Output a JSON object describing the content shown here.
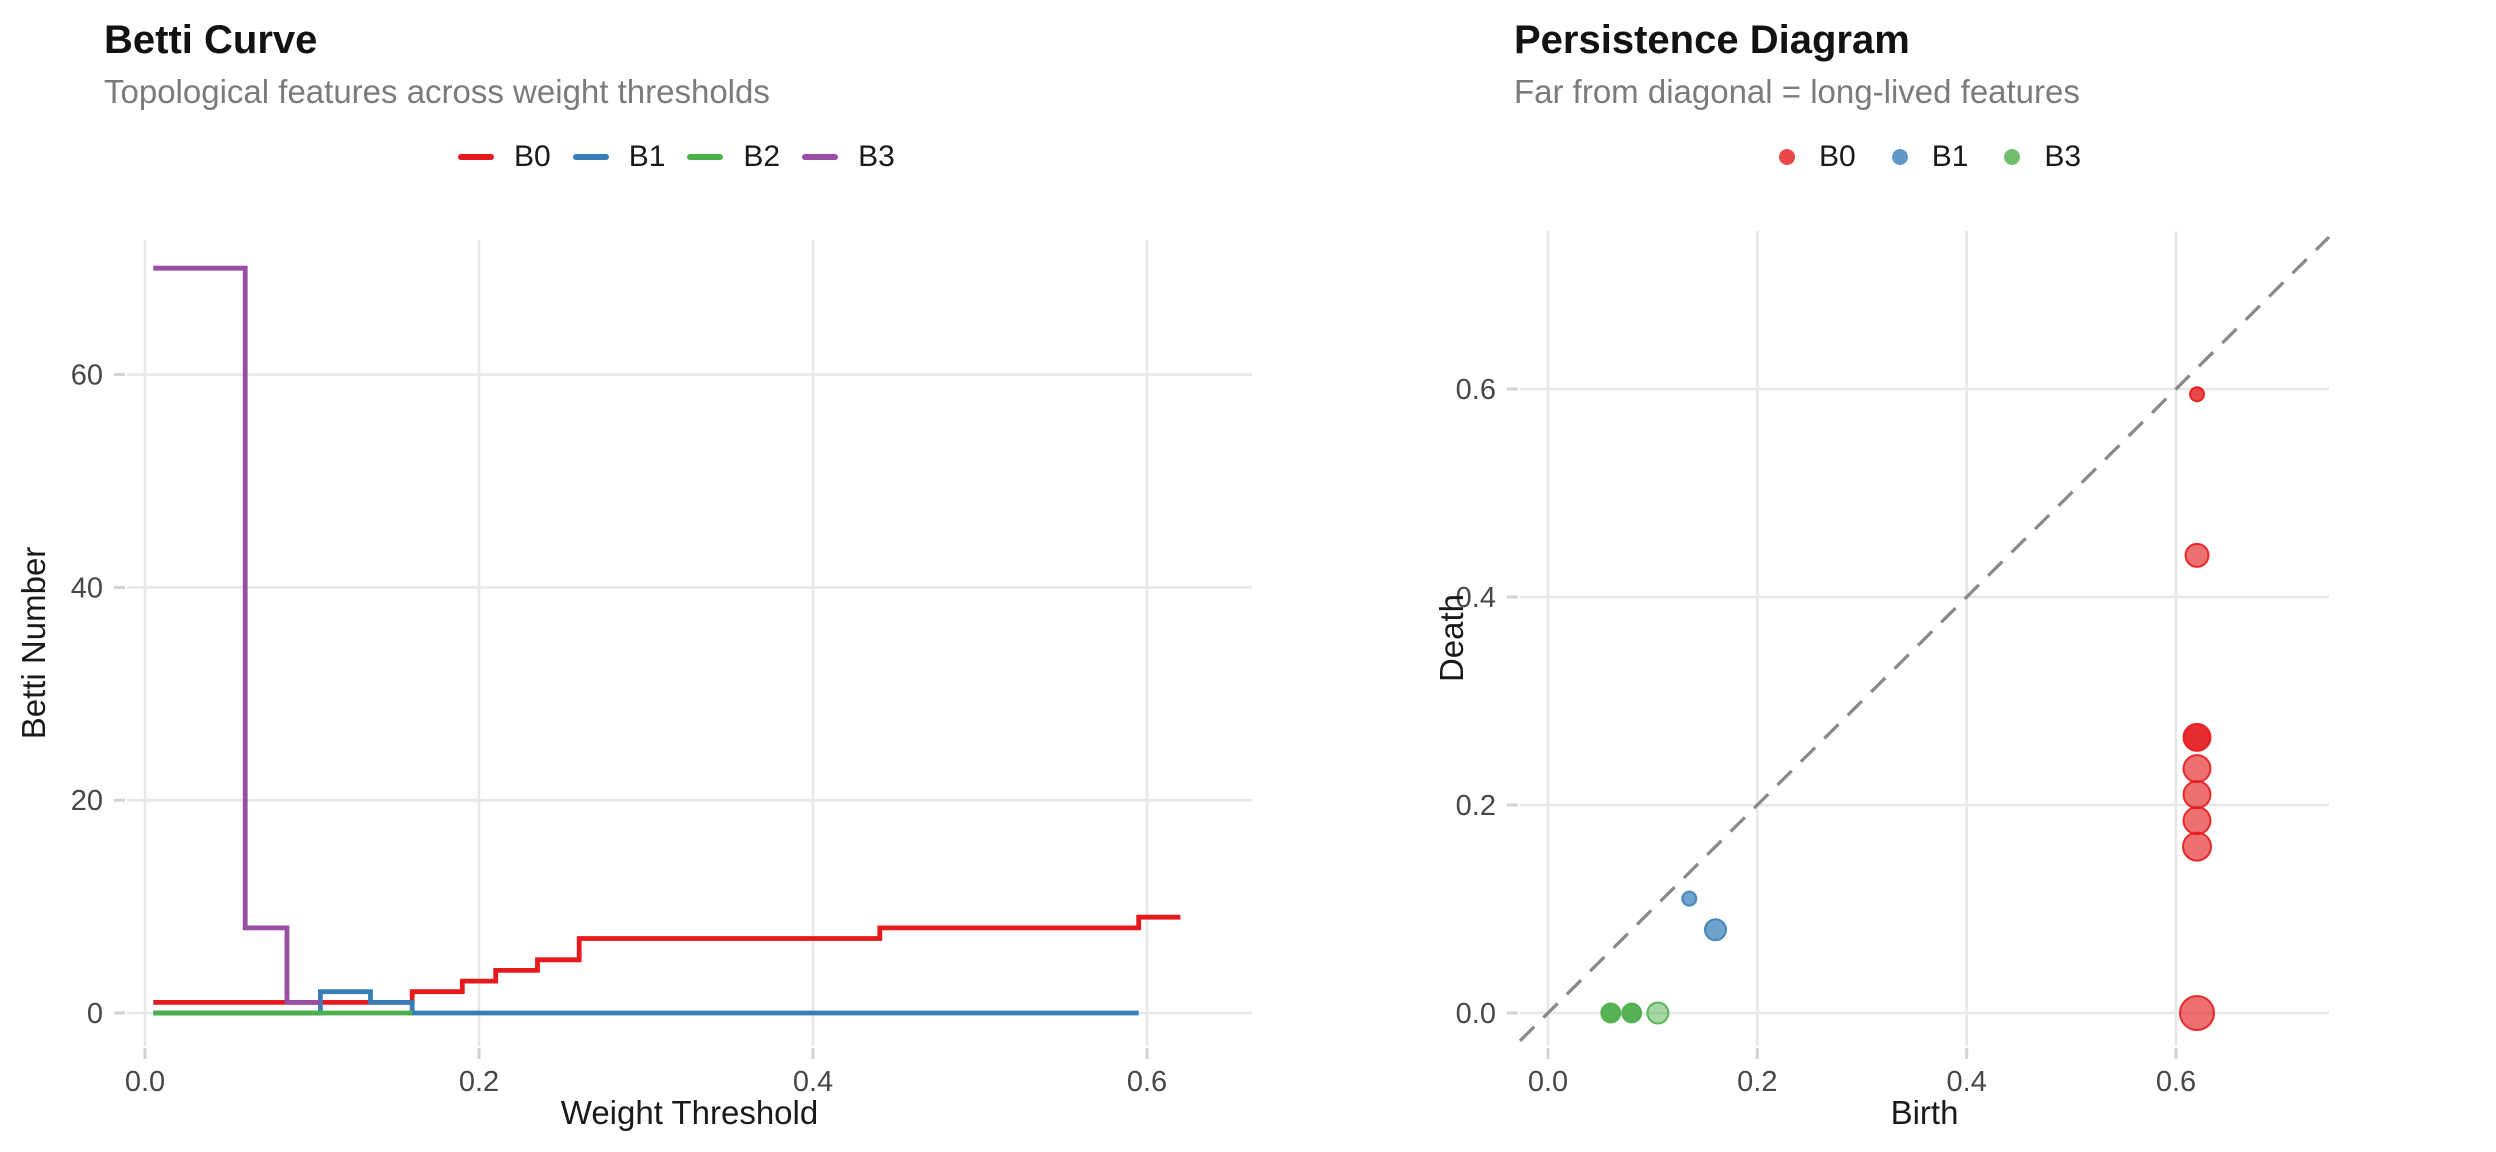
{
  "betti": {
    "title": "Betti Curve",
    "subtitle": "Topological features across weight thresholds",
    "xlabel": "Weight Threshold",
    "ylabel": "Betti Number",
    "legend": [
      {
        "label": "B0",
        "color": "#e41a1c"
      },
      {
        "label": "B1",
        "color": "#377eb8"
      },
      {
        "label": "B2",
        "color": "#4daf4a"
      },
      {
        "label": "B3",
        "color": "#984ea3"
      }
    ]
  },
  "persistence": {
    "title": "Persistence Diagram",
    "subtitle": "Far from diagonal = long-lived features",
    "xlabel": "Birth",
    "ylabel": "Death",
    "legend": [
      {
        "label": "B0",
        "color": "#e41a1c"
      },
      {
        "label": "B1",
        "color": "#377eb8"
      },
      {
        "label": "B3",
        "color": "#4daf4a"
      }
    ]
  },
  "colors": {
    "grid": "#e7e7e7",
    "tick": "#d2d2d2",
    "tick_label": "#474747",
    "axis_title": "#1a1a1a",
    "title": "#121212",
    "subtitle": "#7b7b7b",
    "diagonal": "#8a8a8a",
    "background": "#ffffff"
  },
  "chart_data": [
    {
      "type": "line",
      "step": true,
      "title": "Betti Curve",
      "subtitle": "Topological features across weight thresholds",
      "xlabel": "Weight Threshold",
      "ylabel": "Betti Number",
      "xlim": [
        -0.01,
        0.66
      ],
      "ylim": [
        -3,
        73
      ],
      "xticks": [
        0,
        0.2,
        0.4,
        0.6
      ],
      "xtick_labels": [
        "0.0",
        "0.2",
        "0.4",
        "0.6"
      ],
      "yticks": [
        0,
        20,
        40,
        60
      ],
      "ytick_labels": [
        "0",
        "20",
        "40",
        "60"
      ],
      "grid": "major",
      "legend_position": "top",
      "series": [
        {
          "name": "B0",
          "color": "#e41a1c",
          "points": [
            [
              0.005,
              1
            ],
            [
              0.16,
              2
            ],
            [
              0.19,
              3
            ],
            [
              0.21,
              4
            ],
            [
              0.235,
              5
            ],
            [
              0.26,
              7
            ],
            [
              0.44,
              8
            ],
            [
              0.595,
              9
            ],
            [
              0.62,
              9
            ]
          ]
        },
        {
          "name": "B1",
          "color": "#377eb8",
          "points": [
            [
              0.005,
              0
            ],
            [
              0.105,
              2
            ],
            [
              0.135,
              1
            ],
            [
              0.16,
              0
            ],
            [
              0.595,
              0
            ]
          ]
        },
        {
          "name": "B2",
          "color": "#4daf4a",
          "points": [
            [
              0.005,
              0
            ],
            [
              0.16,
              0
            ]
          ]
        },
        {
          "name": "B3",
          "color": "#984ea3",
          "points": [
            [
              0.005,
              70
            ],
            [
              0.06,
              8
            ],
            [
              0.085,
              1
            ],
            [
              0.105,
              1
            ]
          ]
        }
      ]
    },
    {
      "type": "scatter",
      "title": "Persistence Diagram",
      "subtitle": "Far from diagonal = long-lived features",
      "xlabel": "Birth",
      "ylabel": "Death",
      "xlim": [
        -0.027,
        0.746
      ],
      "ylim": [
        -0.032,
        0.752
      ],
      "xticks": [
        0,
        0.2,
        0.4,
        0.6
      ],
      "xtick_labels": [
        "0.0",
        "0.2",
        "0.4",
        "0.6"
      ],
      "yticks": [
        0,
        0.2,
        0.4,
        0.6
      ],
      "ytick_labels": [
        "0.0",
        "0.2",
        "0.4",
        "0.6"
      ],
      "grid": "major",
      "diagonal": {
        "style": "dashed",
        "equation": "y = x"
      },
      "legend_position": "top",
      "series": [
        {
          "name": "B0",
          "color": "#e41a1c",
          "points": [
            {
              "birth": 0.62,
              "death": 0.595,
              "size": 7,
              "alpha": 0.8
            },
            {
              "birth": 0.62,
              "death": 0.44,
              "size": 11.5,
              "alpha": 0.62
            },
            {
              "birth": 0.62,
              "death": 0.265,
              "size": 13.5,
              "alpha": 0.92
            },
            {
              "birth": 0.62,
              "death": 0.235,
              "size": 13.5,
              "alpha": 0.62
            },
            {
              "birth": 0.62,
              "death": 0.21,
              "size": 13.5,
              "alpha": 0.62
            },
            {
              "birth": 0.62,
              "death": 0.185,
              "size": 13.5,
              "alpha": 0.62
            },
            {
              "birth": 0.62,
              "death": 0.16,
              "size": 14,
              "alpha": 0.62
            },
            {
              "birth": 0.62,
              "death": 0.0,
              "size": 17,
              "alpha": 0.62
            }
          ]
        },
        {
          "name": "B1",
          "color": "#377eb8",
          "points": [
            {
              "birth": 0.135,
              "death": 0.11,
              "size": 7,
              "alpha": 0.72
            },
            {
              "birth": 0.16,
              "death": 0.08,
              "size": 10.5,
              "alpha": 0.72
            }
          ]
        },
        {
          "name": "B3",
          "color": "#4daf4a",
          "points": [
            {
              "birth": 0.06,
              "death": 0.0,
              "size": 9.5,
              "alpha": 0.95
            },
            {
              "birth": 0.08,
              "death": 0.0,
              "size": 9.5,
              "alpha": 0.95
            },
            {
              "birth": 0.105,
              "death": 0.0,
              "size": 10.5,
              "alpha": 0.5
            }
          ]
        }
      ]
    }
  ]
}
